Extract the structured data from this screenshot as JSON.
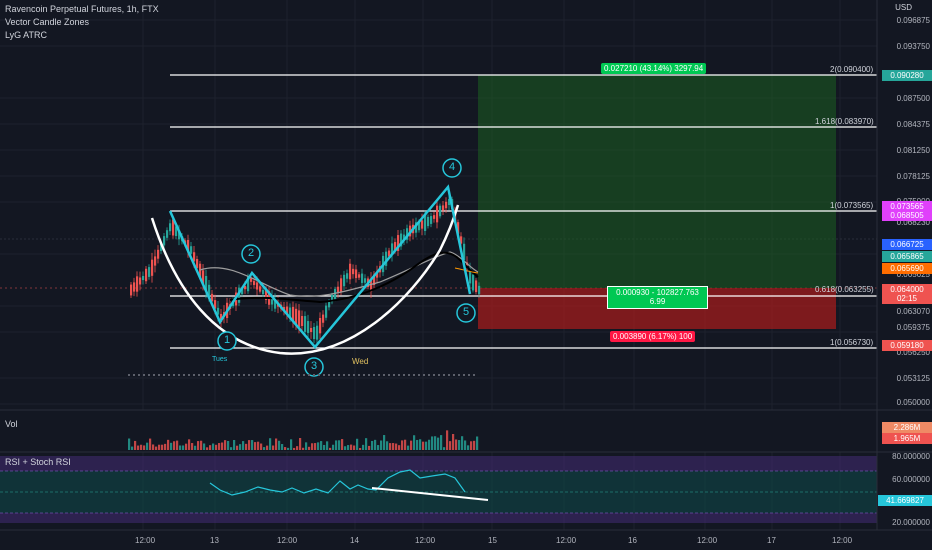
{
  "header": {
    "symbol_title": "Ravencoin Perpetual Futures, 1h, FTX",
    "indicator_1": "Vector Candle Zones",
    "indicator_2": "LyG ATRC"
  },
  "price_axis": {
    "currency": "USD",
    "ticks": [
      "0.096875",
      "0.093750",
      "0.087500",
      "0.084375",
      "0.081250",
      "0.078125",
      "0.075000",
      "0.068230",
      "0.065625",
      "0.063070",
      "0.059375",
      "0.056250",
      "0.053125",
      "0.050000"
    ],
    "tags": [
      {
        "text": "0.090280",
        "color": "#26a69a"
      },
      {
        "text": "0.073565",
        "color": "#e040fb"
      },
      {
        "text": "0.068505",
        "color": "#e040fb"
      },
      {
        "text": "0.066725",
        "color": "#2962ff"
      },
      {
        "text": "0.065865",
        "color": "#26a69a"
      },
      {
        "text": "0.065690",
        "color": "#ff6d00"
      },
      {
        "text": "0.064000",
        "color": "#ef5350"
      },
      {
        "text": "02:15",
        "color": "#ef5350"
      },
      {
        "text": "0.059180",
        "color": "#ef5350"
      }
    ]
  },
  "fib_levels": [
    {
      "label": "2(0.090400)"
    },
    {
      "label": "1.618(0.083970)"
    },
    {
      "label": "1(0.073565)"
    },
    {
      "label": "0.618(0.063255)"
    },
    {
      "label": "1(0.056730)"
    }
  ],
  "position_tool": {
    "target_label": "0.027210 (43.14%) 3297.94",
    "center_label_line1": "0.000930 - 102827.763",
    "center_label_line2": "6.99",
    "stop_label": "0.003890 (6.17%) 100"
  },
  "wave_labels": [
    "1",
    "2",
    "3",
    "4",
    "5"
  ],
  "chart_text": {
    "tues": "Tues",
    "wed": "Wed"
  },
  "volume_panel": {
    "title": "Vol",
    "tag_1": {
      "text": "2.286M",
      "color": "#ef8a65"
    },
    "tag_2": {
      "text": "1.965M",
      "color": "#ef5350"
    }
  },
  "rsi_panel": {
    "title": "RSI + Stoch RSI",
    "ticks": [
      "80.000000",
      "60.000000",
      "20.000000"
    ],
    "value_tag": {
      "text": "41.669827",
      "color": "#26c6da"
    }
  },
  "time_axis": {
    "labels": [
      "12:00",
      "13",
      "12:00",
      "14",
      "12:00",
      "15",
      "12:00",
      "16",
      "12:00",
      "17",
      "12:00"
    ]
  }
}
